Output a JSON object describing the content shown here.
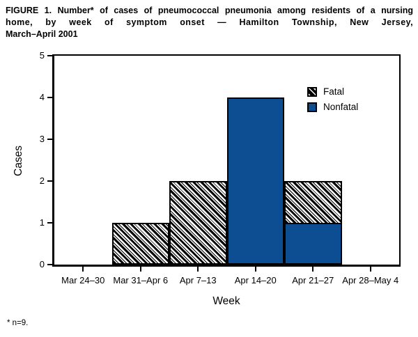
{
  "figure": {
    "title_lines": [
      "FIGURE 1. Number* of cases of pneumococcal pneumonia among residents of a nursing",
      "home, by week of symptom onset — Hamilton Township, New Jersey,",
      "March–April 2001"
    ],
    "footnote": "* n=9."
  },
  "chart_data": {
    "type": "bar",
    "stacked": true,
    "title": "FIGURE 1. Number* of cases of pneumococcal pneumonia among residents of a nursing home, by week of symptom onset — Hamilton Township, New Jersey, March–April 2001",
    "xlabel": "Week",
    "ylabel": "Cases",
    "ylim": [
      0,
      5
    ],
    "yticks": [
      0,
      1,
      2,
      3,
      4,
      5
    ],
    "categories": [
      "Mar 24–30",
      "Mar 31–Apr 6",
      "Apr 7–13",
      "Apr 14–20",
      "Apr 21–27",
      "Apr 28–May 4"
    ],
    "series": [
      {
        "name": "Nonfatal",
        "style": "solid",
        "color": "#0d4d92",
        "values": [
          0,
          0,
          0,
          4,
          1,
          0
        ]
      },
      {
        "name": "Fatal",
        "style": "diagonal-hatch",
        "color": "#000000",
        "values": [
          0,
          1,
          2,
          0,
          1,
          0
        ]
      }
    ],
    "totals": [
      0,
      1,
      2,
      4,
      2,
      0
    ],
    "legend": {
      "position": "top-right-inside",
      "entries": [
        {
          "label": "Fatal",
          "swatch": "diagonal-hatch"
        },
        {
          "label": "Nonfatal",
          "swatch": "solid-blue"
        }
      ]
    },
    "grid": false,
    "colors": {
      "bar_blue": "#0d4d92",
      "axis": "#000000",
      "background": "#ffffff"
    }
  }
}
